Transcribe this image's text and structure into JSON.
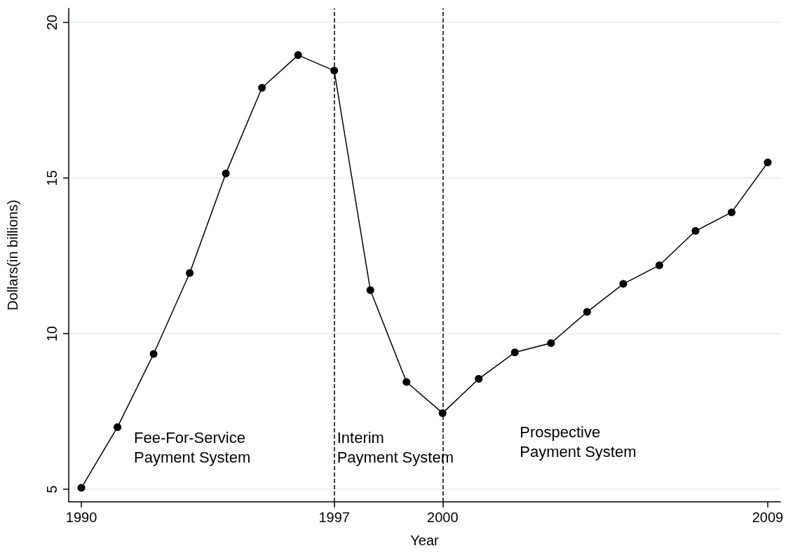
{
  "chart_data": {
    "type": "line",
    "xlabel": "Year",
    "ylabel": "Dollars(in billions)",
    "x": [
      1990,
      1991,
      1992,
      1993,
      1994,
      1995,
      1996,
      1997,
      1998,
      1999,
      2000,
      2001,
      2002,
      2003,
      2004,
      2005,
      2006,
      2007,
      2008,
      2009
    ],
    "series": [
      {
        "color": "#000000",
        "values": [
          5.05,
          7.0,
          9.35,
          11.95,
          15.15,
          17.9,
          18.95,
          18.45,
          11.4,
          8.45,
          7.45,
          8.55,
          9.4,
          9.7,
          10.7,
          11.6,
          12.2,
          13.3,
          13.9,
          15.5
        ]
      }
    ],
    "xlim": [
      1989.65,
      2009.35
    ],
    "xticks": [
      1990,
      1997,
      2000,
      2009
    ],
    "ylim": [
      4.6,
      20.45
    ],
    "yticks": [
      5,
      10,
      15,
      20
    ],
    "grid": "y",
    "marker": "circle",
    "line_style": "solid",
    "ref_lines": [
      {
        "axis": "x",
        "value": 1997,
        "color": "#000000",
        "line_style": "dashed"
      },
      {
        "axis": "x",
        "value": 2000,
        "color": "#000000",
        "line_style": "dashed"
      }
    ],
    "annotations": [
      "Fee-For-Service\nPayment System",
      "Interim\nPayment System",
      "Prospective\nPayment System"
    ]
  }
}
